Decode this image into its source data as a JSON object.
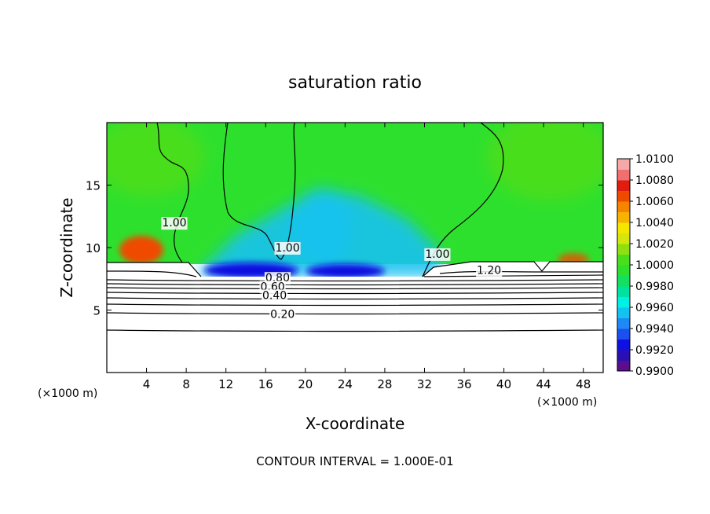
{
  "chart_data": {
    "type": "heatmap",
    "title": "saturation ratio",
    "xlabel": "X-coordinate",
    "ylabel": "Z-coordinate",
    "x_unit_left": "(×1000 m)",
    "x_unit_right": "(×1000 m)",
    "xlim": [
      0,
      50
    ],
    "ylim": [
      0,
      20
    ],
    "x_ticks": [
      4,
      8,
      12,
      16,
      20,
      24,
      28,
      32,
      36,
      40,
      44,
      48
    ],
    "y_ticks": [
      5,
      10,
      15
    ],
    "footer": "CONTOUR INTERVAL = 1.000E-01",
    "colorbar": {
      "min": 0.99,
      "max": 1.01,
      "labels": [
        "1.0100",
        "1.0080",
        "1.0060",
        "1.0040",
        "1.0020",
        "1.0000",
        "0.9980",
        "0.9960",
        "0.9940",
        "0.9920",
        "0.9900"
      ],
      "bands": [
        {
          "from": 0.99,
          "to": 0.991,
          "color": "#5a0d8c"
        },
        {
          "from": 0.991,
          "to": 0.992,
          "color": "#2a0fb4"
        },
        {
          "from": 0.992,
          "to": 0.993,
          "color": "#1010e0"
        },
        {
          "from": 0.993,
          "to": 0.994,
          "color": "#1c4ff0"
        },
        {
          "from": 0.994,
          "to": 0.995,
          "color": "#1e88f5"
        },
        {
          "from": 0.995,
          "to": 0.996,
          "color": "#14c2f0"
        },
        {
          "from": 0.996,
          "to": 0.997,
          "color": "#00f0e6"
        },
        {
          "from": 0.997,
          "to": 0.998,
          "color": "#00e2a0"
        },
        {
          "from": 0.998,
          "to": 0.999,
          "color": "#14e060"
        },
        {
          "from": 0.999,
          "to": 1.0,
          "color": "#2ee02e"
        },
        {
          "from": 1.0,
          "to": 1.001,
          "color": "#4ade1c"
        },
        {
          "from": 1.001,
          "to": 1.002,
          "color": "#8fe010"
        },
        {
          "from": 1.002,
          "to": 1.003,
          "color": "#d4e60a"
        },
        {
          "from": 1.003,
          "to": 1.004,
          "color": "#f5e600"
        },
        {
          "from": 1.004,
          "to": 1.005,
          "color": "#f6b400"
        },
        {
          "from": 1.005,
          "to": 1.006,
          "color": "#f68400"
        },
        {
          "from": 1.006,
          "to": 1.007,
          "color": "#f04a00"
        },
        {
          "from": 1.007,
          "to": 1.008,
          "color": "#e01e10"
        },
        {
          "from": 1.008,
          "to": 1.009,
          "color": "#f07070"
        },
        {
          "from": 1.009,
          "to": 1.01,
          "color": "#f4a8a8"
        }
      ]
    },
    "contour_labels": [
      {
        "text": "1.00",
        "x": 6.8,
        "z": 12.0
      },
      {
        "text": "1.00",
        "x": 18.2,
        "z": 10.0
      },
      {
        "text": "1.00",
        "x": 33.3,
        "z": 9.5
      },
      {
        "text": "1.20",
        "x": 38.5,
        "z": 8.2
      },
      {
        "text": "0.80",
        "x": 17.2,
        "z": 7.6
      },
      {
        "text": "0.60",
        "x": 16.7,
        "z": 6.9
      },
      {
        "text": "0.40",
        "x": 16.9,
        "z": 6.2
      },
      {
        "text": "0.20",
        "x": 17.7,
        "z": 4.7
      }
    ],
    "colors": {
      "background_field": "#2ee02e",
      "upper_field": "#4ade1c",
      "moist_band": "#14c2f0",
      "dry_core": "#1010e0",
      "warm_edge": "#f04a00"
    }
  }
}
